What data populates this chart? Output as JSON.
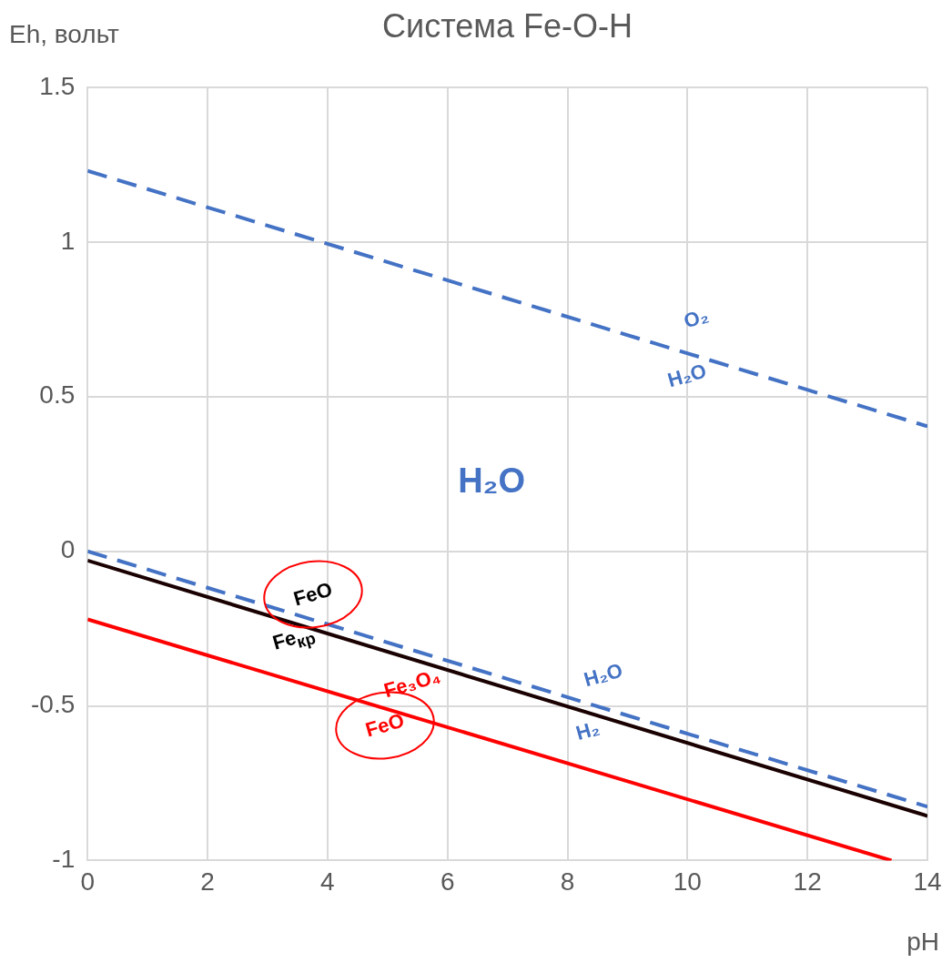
{
  "chart_data": {
    "type": "line",
    "title": "Система Fe-O-H",
    "xlabel": "pH",
    "ylabel": "Eh, вольт",
    "xlim": [
      0,
      14
    ],
    "xticks": [
      0,
      2,
      4,
      6,
      8,
      10,
      12,
      14
    ],
    "ylim": [
      -1,
      1.5
    ],
    "yticks": [
      -1,
      -0.5,
      0,
      0.5,
      1,
      1.5
    ],
    "grid": true,
    "legend": false,
    "marker": "none",
    "series": [
      {
        "color": "#4472c4",
        "line_style": "dashed",
        "x": [
          0,
          14
        ],
        "values": [
          1.23,
          0.404
        ]
      },
      {
        "color": "#4472c4",
        "line_style": "dashed",
        "x": [
          0,
          14
        ],
        "values": [
          0,
          -0.826
        ]
      },
      {
        "color": "#1a0000",
        "line_style": "solid",
        "x": [
          0,
          14
        ],
        "values": [
          -0.03,
          -0.856
        ]
      },
      {
        "color": "#ff0000",
        "line_style": "solid",
        "x": [
          0,
          13.4
        ],
        "values": [
          -0.22,
          -1.0
        ]
      }
    ],
    "annotations": [
      "O₂",
      "H₂O",
      "H₂O",
      "FeO",
      "Fe$_{кр}$",
      "Fe₃O₄",
      "FeO",
      "H₂O",
      "H₂"
    ]
  }
}
